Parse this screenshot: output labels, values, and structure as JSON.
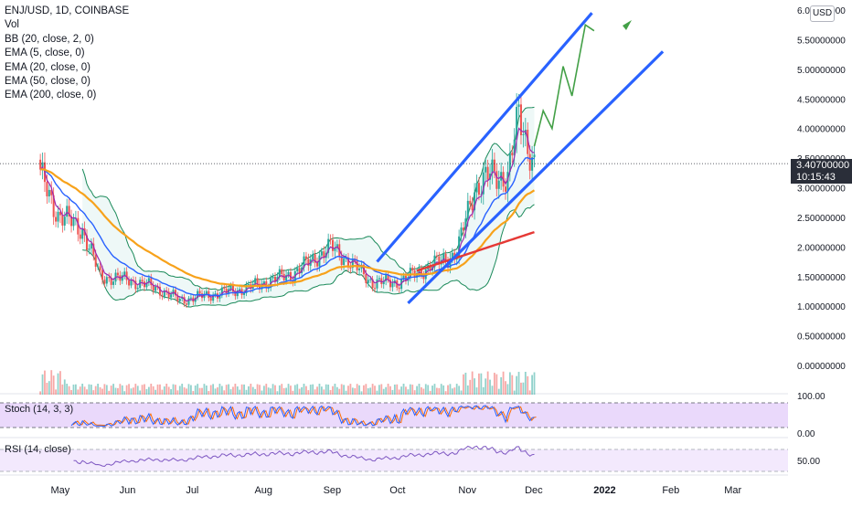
{
  "header": {
    "symbol_line": "ENJ/USD, 1D, COINBASE",
    "indicators": [
      "Vol",
      "BB (20, close, 2, 0)",
      "EMA (5, close, 0)",
      "EMA (20, close, 0)",
      "EMA (50, close, 0)",
      "EMA (200, close, 0)"
    ]
  },
  "price_axis": {
    "currency_button": "USD",
    "tick_labels": [
      "6.00000000",
      "5.50000000",
      "5.00000000",
      "4.50000000",
      "4.00000000",
      "3.50000000",
      "3.00000000",
      "2.50000000",
      "2.00000000",
      "1.50000000",
      "1.00000000",
      "0.50000000",
      "0.00000000"
    ],
    "last_price": "3.40700000",
    "countdown": "10:15:43"
  },
  "time_axis": {
    "labels": [
      "May",
      "Jun",
      "Jul",
      "Aug",
      "Sep",
      "Oct",
      "Nov",
      "Dec",
      "2022",
      "Feb",
      "Mar"
    ]
  },
  "stoch_pane": {
    "label": "Stoch (14, 3, 3)",
    "upper": "100.00",
    "lower": "0.00"
  },
  "rsi_pane": {
    "label": "RSI (14, close)",
    "level": "50.00"
  },
  "colors": {
    "up": "#26a69a",
    "down": "#ef5350",
    "bb": "#1b8a5a",
    "ema5": "#9c27b0",
    "ema20": "#2962ff",
    "ema50": "#f7a21b",
    "ema200": "#e53935",
    "channel": "#2962ff",
    "projection": "#43a047",
    "stoch_k": "#2962ff",
    "stoch_d": "#ff6d00",
    "rsi": "#7e57c2",
    "pane_fill": "#ead9fb"
  },
  "chart_data": [
    {
      "type": "candlestick",
      "title": "ENJ/USD, 1D, COINBASE",
      "x_range": [
        "2021-04-18",
        "2022-03-10"
      ],
      "ylim": [
        -0.2,
        6.05
      ],
      "anchors": [
        {
          "date": "2021-04-23",
          "close": 3.2
        },
        {
          "date": "2021-05-01",
          "close": 2.55
        },
        {
          "date": "2021-05-12",
          "close": 2.3
        },
        {
          "date": "2021-05-20",
          "close": 1.5
        },
        {
          "date": "2021-06-01",
          "close": 1.45
        },
        {
          "date": "2021-06-15",
          "close": 1.3
        },
        {
          "date": "2021-06-25",
          "close": 1.1
        },
        {
          "date": "2021-07-10",
          "close": 1.2
        },
        {
          "date": "2021-07-25",
          "close": 1.3
        },
        {
          "date": "2021-08-15",
          "close": 1.55
        },
        {
          "date": "2021-09-01",
          "close": 2.0
        },
        {
          "date": "2021-09-08",
          "close": 1.8
        },
        {
          "date": "2021-09-20",
          "close": 1.4
        },
        {
          "date": "2021-10-01",
          "close": 1.4
        },
        {
          "date": "2021-10-15",
          "close": 1.65
        },
        {
          "date": "2021-10-28",
          "close": 1.9
        },
        {
          "date": "2021-11-05",
          "close": 3.0
        },
        {
          "date": "2021-11-12",
          "close": 3.2
        },
        {
          "date": "2021-11-20",
          "close": 3.2
        },
        {
          "date": "2021-11-25",
          "close": 4.2
        },
        {
          "date": "2021-12-02",
          "close": 3.41
        }
      ]
    },
    {
      "type": "line",
      "title": "Trend channel and projection",
      "series": [
        {
          "x": [
            "2021-09-22",
            "2021-12-28"
          ],
          "y": [
            1.75,
            5.95
          ]
        },
        {
          "x": [
            "2021-10-06",
            "2022-01-29"
          ],
          "y": [
            1.05,
            5.3
          ]
        },
        {
          "x": [
            "2021-12-02",
            "2021-12-06",
            "2021-12-10",
            "2021-12-15",
            "2021-12-19",
            "2021-12-25",
            "2021-12-29"
          ],
          "y": [
            3.7,
            4.3,
            4.0,
            5.05,
            4.55,
            5.75,
            5.65
          ]
        }
      ]
    }
  ]
}
